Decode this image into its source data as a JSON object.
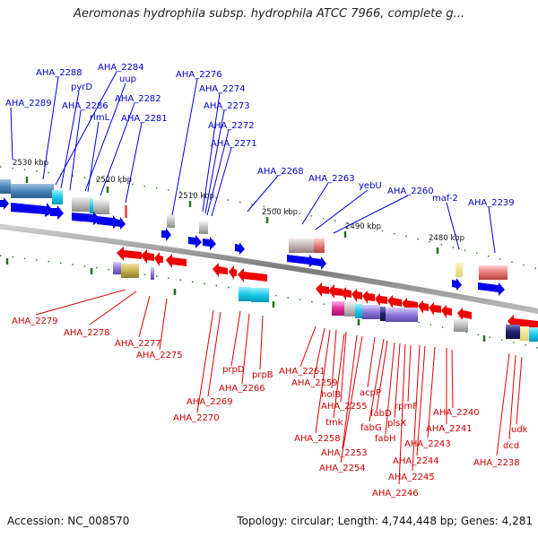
{
  "title": "Aeromonas hydrophila subsp. hydrophila ATCC 7966, complete g...",
  "footer": {
    "accession": "Accession: NC_008570",
    "topology": "Topology: circular; Length: 4,744,448 bp; Genes: 4,281"
  },
  "colors": {
    "forward_gene": "#0000ee",
    "reverse_gene": "#ee0000",
    "backbone": "#888888",
    "tick": "#208020",
    "forward_label": "#0000cc",
    "reverse_label": "#cc0000"
  },
  "scale_ticks": [
    "2530 kbp",
    "2520 kbp",
    "2510 kbp",
    "2500 kbp",
    "2490 kbp",
    "2480 kbp"
  ],
  "forward_labels": [
    "AHA_2288",
    "AHA_2284",
    "uup",
    "pyrD",
    "AHA_2289",
    "AHA_2286",
    "AHA_2282",
    "rlmL",
    "AHA_2281",
    "AHA_2276",
    "AHA_2274",
    "AHA_2273",
    "AHA_2272",
    "AHA_2271",
    "AHA_2268",
    "AHA_2263",
    "yebU",
    "AHA_2260",
    "maf-2",
    "AHA_2239"
  ],
  "reverse_labels": [
    "AHA_2279",
    "AHA_2278",
    "AHA_2277",
    "AHA_2275",
    "prpD",
    "prpB",
    "AHA_2266",
    "AHA_2269",
    "AHA_2270",
    "AHA_2261",
    "AHA_2259",
    "holB",
    "AHA_2255",
    "acpP",
    "fabG",
    "tmk",
    "AHA_2258",
    "AHA_2253",
    "AHA_2254",
    "fabD",
    "rpmF",
    "plsX",
    "fabH",
    "AHA_2240",
    "AHA_2241",
    "AHA_2243",
    "AHA_2244",
    "AHA_2245",
    "AHA_2246",
    "udk",
    "dcd",
    "AHA_2238"
  ]
}
